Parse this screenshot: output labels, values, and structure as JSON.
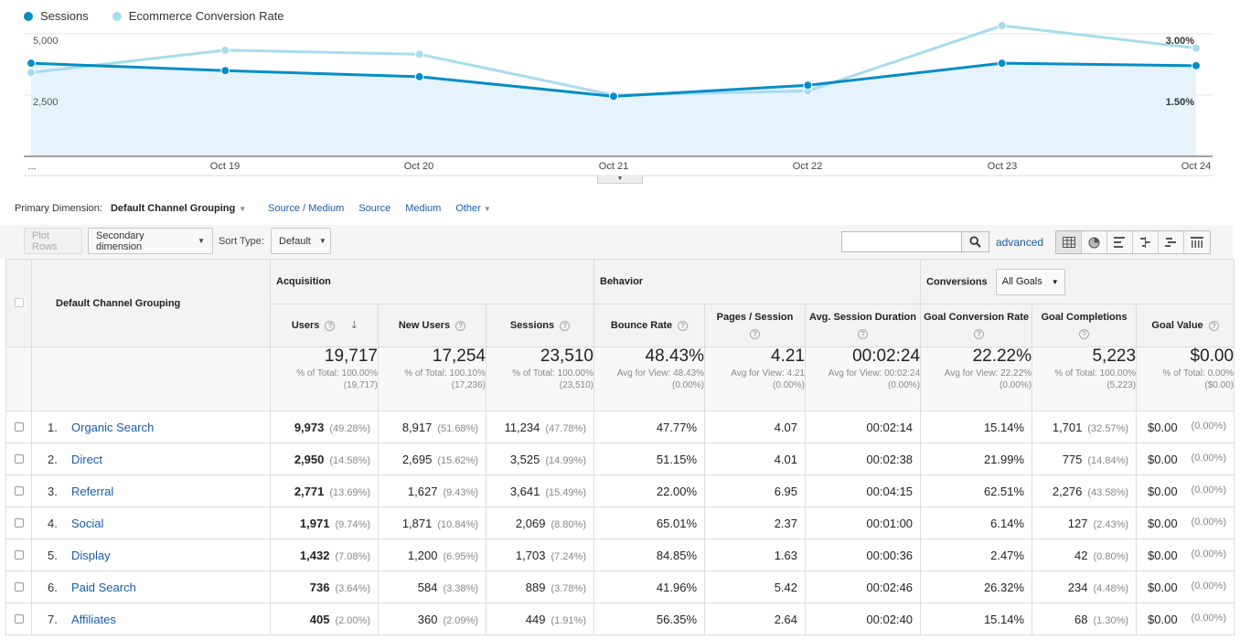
{
  "chart": {
    "legend": [
      {
        "name": "Sessions",
        "color": "#058dc7"
      },
      {
        "name": "Ecommerce Conversion Rate",
        "color": "#a8dbef"
      }
    ],
    "left_ticks": [
      "5,000",
      "2,500"
    ],
    "right_ticks": [
      "3.00%",
      "1.50%"
    ],
    "x_labels": [
      "...",
      "Oct 19",
      "Oct 20",
      "Oct 21",
      "Oct 22",
      "Oct 23",
      "Oct 24"
    ]
  },
  "chart_data": {
    "type": "line",
    "x": [
      "...",
      "Oct 19",
      "Oct 20",
      "Oct 21",
      "Oct 22",
      "Oct 23",
      "Oct 24"
    ],
    "series": [
      {
        "name": "Sessions",
        "axis": "left",
        "values": [
          3800,
          3500,
          3250,
          2450,
          2900,
          3800,
          3700
        ],
        "color": "#058dc7"
      },
      {
        "name": "Ecommerce Conversion Rate",
        "axis": "right",
        "values": [
          2.05,
          2.6,
          2.5,
          1.5,
          1.6,
          3.2,
          2.65
        ],
        "color": "#a8dbef"
      }
    ],
    "ylim_left": [
      0,
      5000
    ],
    "ylim_right": [
      0,
      3.0
    ],
    "grid": true,
    "legend": "top-left"
  },
  "dimension_bar": {
    "label": "Primary Dimension:",
    "current": "Default Channel Grouping",
    "links": [
      "Source / Medium",
      "Source",
      "Medium",
      "Other"
    ]
  },
  "toolbar": {
    "plot_rows": "Plot Rows",
    "secondary_dimension": "Secondary dimension",
    "sort_type_label": "Sort Type:",
    "sort_type_value": "Default",
    "advanced": "advanced",
    "search_placeholder": ""
  },
  "table": {
    "dimension_header": "Default Channel Grouping",
    "groups": {
      "acquisition": "Acquisition",
      "behavior": "Behavior",
      "conversions": "Conversions",
      "conversions_select": "All Goals"
    },
    "columns": [
      "Users",
      "New Users",
      "Sessions",
      "Bounce Rate",
      "Pages / Session",
      "Avg. Session Duration",
      "Goal Conversion Rate",
      "Goal Completions",
      "Goal Value"
    ],
    "totals": [
      {
        "value": "19,717",
        "sub": "% of Total: 100.00% (19,717)"
      },
      {
        "value": "17,254",
        "sub": "% of Total: 100.10% (17,236)"
      },
      {
        "value": "23,510",
        "sub": "% of Total: 100.00% (23,510)"
      },
      {
        "value": "48.43%",
        "sub": "Avg for View: 48.43% (0.00%)"
      },
      {
        "value": "4.21",
        "sub": "Avg for View: 4.21 (0.00%)"
      },
      {
        "value": "00:02:24",
        "sub": "Avg for View: 00:02:24 (0.00%)"
      },
      {
        "value": "22.22%",
        "sub": "Avg for View: 22.22% (0.00%)"
      },
      {
        "value": "5,223",
        "sub": "% of Total: 100.00% (5,223)"
      },
      {
        "value": "$0.00",
        "sub": "% of Total: 0.00% ($0.00)"
      }
    ],
    "rows": [
      {
        "num": "1.",
        "channel": "Organic Search",
        "users": "9,973",
        "users_pct": "(49.28%)",
        "new_users": "8,917",
        "new_users_pct": "(51.68%)",
        "sessions": "11,234",
        "sessions_pct": "(47.78%)",
        "bounce": "47.77%",
        "pages": "4.07",
        "duration": "00:02:14",
        "conv_rate": "15.14%",
        "completions": "1,701",
        "completions_pct": "(32.57%)",
        "value": "$0.00",
        "value_pct": "(0.00%)"
      },
      {
        "num": "2.",
        "channel": "Direct",
        "users": "2,950",
        "users_pct": "(14.58%)",
        "new_users": "2,695",
        "new_users_pct": "(15.62%)",
        "sessions": "3,525",
        "sessions_pct": "(14.99%)",
        "bounce": "51.15%",
        "pages": "4.01",
        "duration": "00:02:38",
        "conv_rate": "21.99%",
        "completions": "775",
        "completions_pct": "(14.84%)",
        "value": "$0.00",
        "value_pct": "(0.00%)"
      },
      {
        "num": "3.",
        "channel": "Referral",
        "users": "2,771",
        "users_pct": "(13.69%)",
        "new_users": "1,627",
        "new_users_pct": "(9.43%)",
        "sessions": "3,641",
        "sessions_pct": "(15.49%)",
        "bounce": "22.00%",
        "pages": "6.95",
        "duration": "00:04:15",
        "conv_rate": "62.51%",
        "completions": "2,276",
        "completions_pct": "(43.58%)",
        "value": "$0.00",
        "value_pct": "(0.00%)"
      },
      {
        "num": "4.",
        "channel": "Social",
        "users": "1,971",
        "users_pct": "(9.74%)",
        "new_users": "1,871",
        "new_users_pct": "(10.84%)",
        "sessions": "2,069",
        "sessions_pct": "(8.80%)",
        "bounce": "65.01%",
        "pages": "2.37",
        "duration": "00:01:00",
        "conv_rate": "6.14%",
        "completions": "127",
        "completions_pct": "(2.43%)",
        "value": "$0.00",
        "value_pct": "(0.00%)"
      },
      {
        "num": "5.",
        "channel": "Display",
        "users": "1,432",
        "users_pct": "(7.08%)",
        "new_users": "1,200",
        "new_users_pct": "(6.95%)",
        "sessions": "1,703",
        "sessions_pct": "(7.24%)",
        "bounce": "84.85%",
        "pages": "1.63",
        "duration": "00:00:36",
        "conv_rate": "2.47%",
        "completions": "42",
        "completions_pct": "(0.80%)",
        "value": "$0.00",
        "value_pct": "(0.00%)"
      },
      {
        "num": "6.",
        "channel": "Paid Search",
        "users": "736",
        "users_pct": "(3.64%)",
        "new_users": "584",
        "new_users_pct": "(3.38%)",
        "sessions": "889",
        "sessions_pct": "(3.78%)",
        "bounce": "41.96%",
        "pages": "5.42",
        "duration": "00:02:46",
        "conv_rate": "26.32%",
        "completions": "234",
        "completions_pct": "(4.48%)",
        "value": "$0.00",
        "value_pct": "(0.00%)"
      },
      {
        "num": "7.",
        "channel": "Affiliates",
        "users": "405",
        "users_pct": "(2.00%)",
        "new_users": "360",
        "new_users_pct": "(2.09%)",
        "sessions": "449",
        "sessions_pct": "(1.91%)",
        "bounce": "56.35%",
        "pages": "2.64",
        "duration": "00:02:40",
        "conv_rate": "15.14%",
        "completions": "68",
        "completions_pct": "(1.30%)",
        "value": "$0.00",
        "value_pct": "(0.00%)"
      }
    ]
  }
}
